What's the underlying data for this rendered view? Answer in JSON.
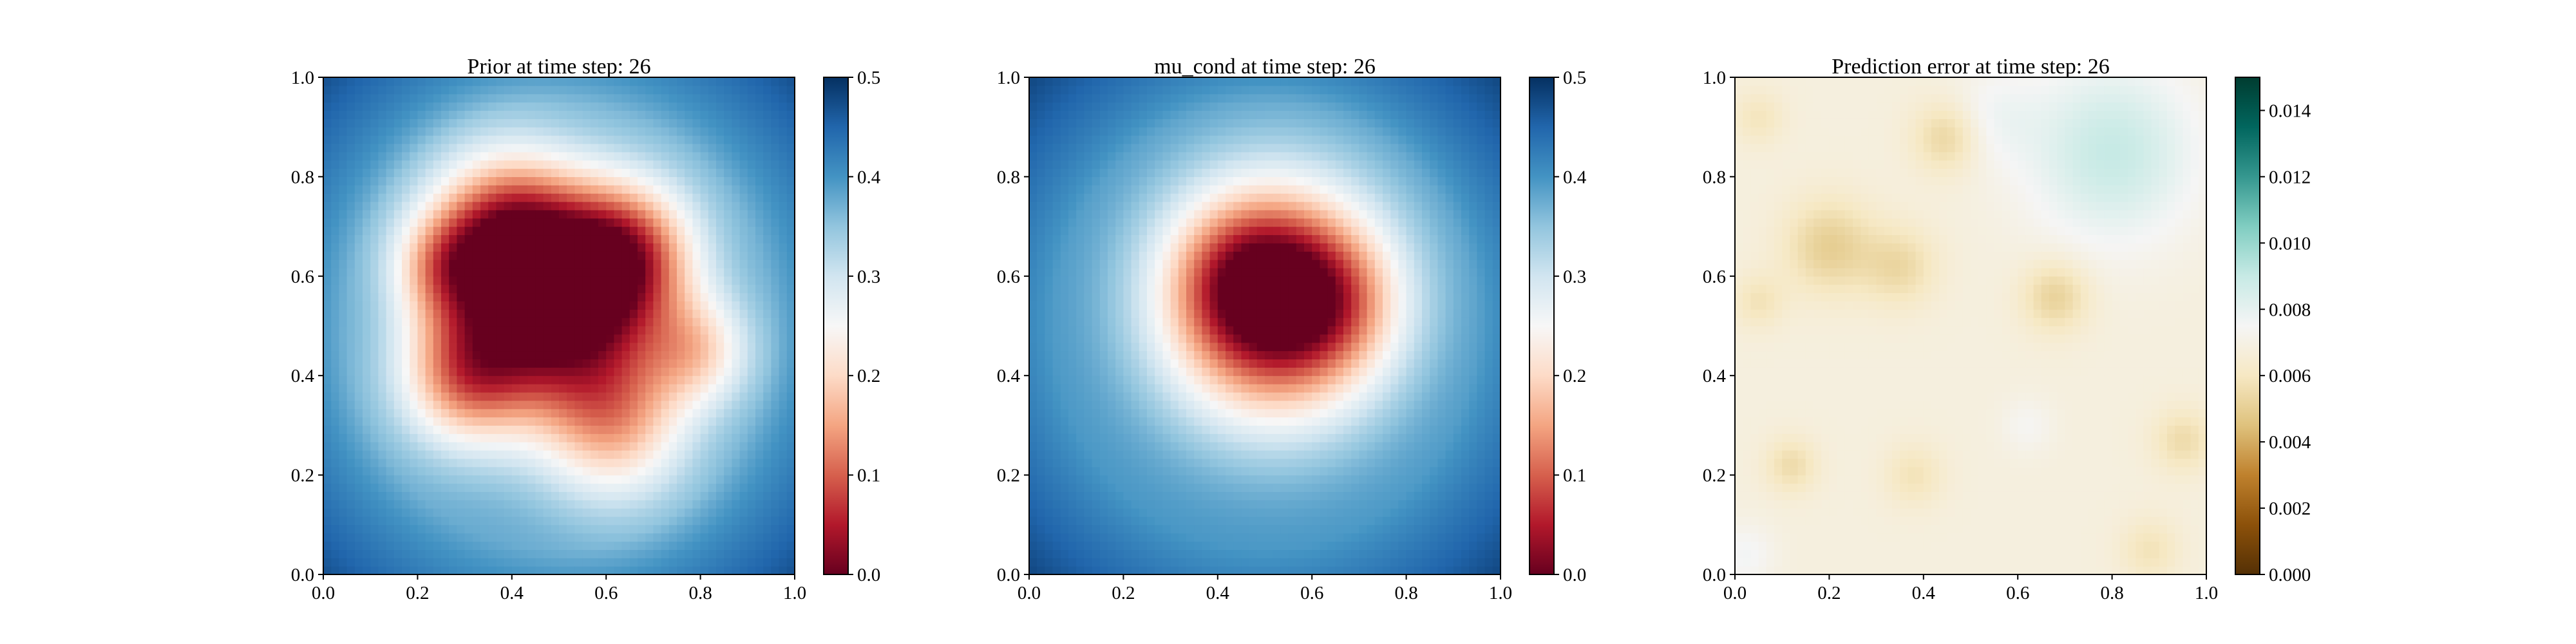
{
  "figure": {
    "background": "#ffffff"
  },
  "chart_data": [
    {
      "type": "heatmap",
      "title": "Prior at time step: 26",
      "xlabel": "",
      "ylabel": "",
      "xlim": [
        0.0,
        1.0
      ],
      "ylim": [
        0.0,
        1.0
      ],
      "x_ticks": [
        "0.0",
        "0.2",
        "0.4",
        "0.6",
        "0.8",
        "1.0"
      ],
      "y_ticks": [
        "0.0",
        "0.2",
        "0.4",
        "0.6",
        "0.8",
        "1.0"
      ],
      "colormap": "RdBu",
      "colormap_stops": [
        "#67001f",
        "#b2182b",
        "#d6604d",
        "#f4a582",
        "#fddbc7",
        "#f7f7f7",
        "#d1e5f0",
        "#92c5de",
        "#4393c3",
        "#2166ac",
        "#053061"
      ],
      "colorbar": {
        "range": [
          0.0,
          0.5
        ],
        "ticks": [
          "0.0",
          "0.1",
          "0.2",
          "0.3",
          "0.4",
          "0.5"
        ]
      },
      "grid": false,
      "field": {
        "description": "irregular low-value blob centered near (0.5, 0.55), values near 0 in center rising to ~0.5 at corners",
        "background": 0.38,
        "blobs": [
          {
            "x": 0.5,
            "y": 0.55,
            "radius": 0.27,
            "depth": 0.4
          },
          {
            "x": 0.38,
            "y": 0.7,
            "radius": 0.2,
            "depth": 0.22
          },
          {
            "x": 0.65,
            "y": 0.65,
            "radius": 0.18,
            "depth": 0.2
          },
          {
            "x": 0.3,
            "y": 0.4,
            "radius": 0.18,
            "depth": 0.22
          },
          {
            "x": 0.62,
            "y": 0.3,
            "radius": 0.2,
            "depth": 0.18
          },
          {
            "x": 0.8,
            "y": 0.45,
            "radius": 0.14,
            "depth": 0.14
          },
          {
            "x": 0.25,
            "y": 0.62,
            "radius": 0.14,
            "depth": 0.14
          }
        ],
        "corner_boost": 0.16
      }
    },
    {
      "type": "heatmap",
      "title": "mu_cond at time step: 26",
      "xlabel": "",
      "ylabel": "",
      "xlim": [
        0.0,
        1.0
      ],
      "ylim": [
        0.0,
        1.0
      ],
      "x_ticks": [
        "0.0",
        "0.2",
        "0.4",
        "0.6",
        "0.8",
        "1.0"
      ],
      "y_ticks": [
        "0.0",
        "0.2",
        "0.4",
        "0.6",
        "0.8",
        "1.0"
      ],
      "colormap": "RdBu",
      "colormap_stops": [
        "#67001f",
        "#b2182b",
        "#d6604d",
        "#f4a582",
        "#fddbc7",
        "#f7f7f7",
        "#d1e5f0",
        "#92c5de",
        "#4393c3",
        "#2166ac",
        "#053061"
      ],
      "colorbar": {
        "range": [
          0.0,
          0.5
        ],
        "ticks": [
          "0.0",
          "0.1",
          "0.2",
          "0.3",
          "0.4",
          "0.5"
        ]
      },
      "grid": false,
      "field": {
        "description": "smooth round low-value blob centered near (0.52, 0.53)",
        "background": 0.4,
        "blobs": [
          {
            "x": 0.52,
            "y": 0.55,
            "radius": 0.3,
            "depth": 0.42
          },
          {
            "x": 0.45,
            "y": 0.6,
            "radius": 0.18,
            "depth": 0.08
          },
          {
            "x": 0.65,
            "y": 0.55,
            "radius": 0.18,
            "depth": 0.08
          }
        ],
        "corner_boost": 0.14
      }
    },
    {
      "type": "heatmap",
      "title": "Prediction error at time step: 26",
      "xlabel": "",
      "ylabel": "",
      "xlim": [
        0.0,
        1.0
      ],
      "ylim": [
        0.0,
        1.0
      ],
      "x_ticks": [
        "0.0",
        "0.2",
        "0.4",
        "0.6",
        "0.8",
        "1.0"
      ],
      "y_ticks": [
        "0.0",
        "0.2",
        "0.4",
        "0.6",
        "0.8",
        "1.0"
      ],
      "colormap": "BrBG",
      "colormap_stops": [
        "#543005",
        "#8c510a",
        "#bf812d",
        "#dfc27d",
        "#f6e8c3",
        "#f5f5f5",
        "#c7eae5",
        "#80cdc1",
        "#35978f",
        "#01665e",
        "#003c30"
      ],
      "colorbar": {
        "range": [
          0.0,
          0.015
        ],
        "ticks": [
          "0.000",
          "0.002",
          "0.004",
          "0.006",
          "0.008",
          "0.010",
          "0.012",
          "0.014"
        ]
      },
      "grid": false,
      "field": {
        "description": "mostly pale tan field (~0.0068) with darker brown patches and a teal upper-right region",
        "background": 0.0068,
        "blobs": [
          {
            "x": 0.2,
            "y": 0.66,
            "radius": 0.12,
            "depth": 0.0018
          },
          {
            "x": 0.35,
            "y": 0.62,
            "radius": 0.1,
            "depth": 0.0014
          },
          {
            "x": 0.45,
            "y": 0.88,
            "radius": 0.09,
            "depth": 0.0016
          },
          {
            "x": 0.68,
            "y": 0.56,
            "radius": 0.09,
            "depth": 0.0017
          },
          {
            "x": 0.12,
            "y": 0.22,
            "radius": 0.07,
            "depth": 0.0013
          },
          {
            "x": 0.95,
            "y": 0.27,
            "radius": 0.08,
            "depth": 0.0013
          },
          {
            "x": 0.38,
            "y": 0.2,
            "radius": 0.08,
            "depth": 0.001
          },
          {
            "x": 0.05,
            "y": 0.55,
            "radius": 0.07,
            "depth": 0.001
          },
          {
            "x": 0.05,
            "y": 0.92,
            "radius": 0.07,
            "depth": 0.0009
          },
          {
            "x": 0.88,
            "y": 0.05,
            "radius": 0.08,
            "depth": 0.001
          },
          {
            "x": 0.8,
            "y": 0.85,
            "radius": 0.22,
            "depth": -0.0022
          },
          {
            "x": 0.55,
            "y": 0.92,
            "radius": 0.12,
            "depth": -0.0008
          },
          {
            "x": 0.62,
            "y": 0.3,
            "radius": 0.07,
            "depth": -0.0006
          },
          {
            "x": 0.02,
            "y": 0.04,
            "radius": 0.08,
            "depth": -0.0008
          }
        ],
        "corner_boost": 0
      }
    }
  ]
}
